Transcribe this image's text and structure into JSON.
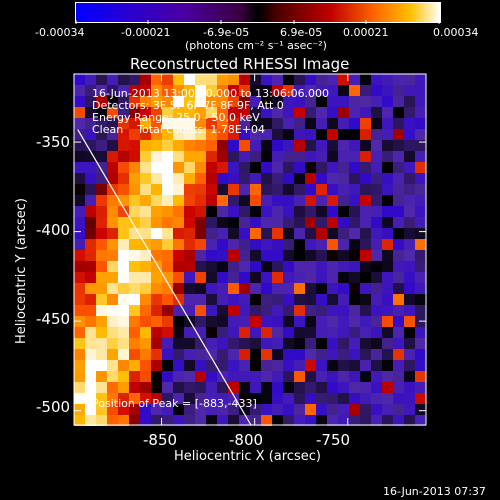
{
  "colorbar": {
    "tick_labels": [
      "-0.00034",
      "-0.00021",
      "-6.9e-05",
      "6.9e-05",
      "0.00021",
      "0.00034"
    ],
    "unit_label": "(photons cm⁻² s⁻¹ asec⁻²)"
  },
  "chart_data": {
    "type": "heatmap",
    "title": "Reconstructed RHESSI Image",
    "xlabel": "Heliocentric X (arcsec)",
    "ylabel": "Heliocentric Y (arcsec)",
    "xlim": [
      -897,
      -708
    ],
    "ylim": [
      -508,
      -312
    ],
    "x_ticks": [
      -850,
      -800,
      -750
    ],
    "y_ticks": [
      -350,
      -400,
      -450,
      -500
    ],
    "x_tick_labels": [
      "-850",
      "-800",
      "-750"
    ],
    "y_tick_labels": [
      "-350",
      "-400",
      "-450",
      "-500"
    ],
    "colorscale_range": [
      -0.00034,
      0.00034
    ],
    "limb_line": [
      [
        -895,
        -343
      ],
      [
        -802,
        -508
      ]
    ],
    "annotations": [
      "16-Jun-2013 13:00:20.000 to 13:06:06.000",
      "Detectors: 3F 5F 6F 7F 8F 9F, Att 0",
      "Energy Range: 25.0 - 50.0 keV",
      "Clean    Total counts: 1.78E+04",
      "Position of Peak = [-883,-433]"
    ]
  },
  "footer_timestamp": "16-Jun-2013 07:37"
}
